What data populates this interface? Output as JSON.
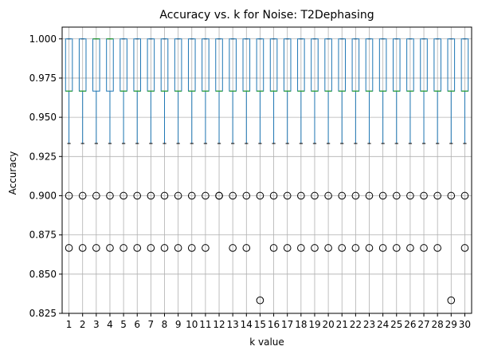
{
  "chart_data": {
    "type": "boxplot",
    "title": "Accuracy vs. k for Noise: T2Dephasing",
    "xlabel": "k value",
    "ylabel": "Accuracy",
    "ylim": [
      0.825,
      1.0075
    ],
    "yticks": [
      0.825,
      0.85,
      0.875,
      0.9,
      0.925,
      0.95,
      0.975,
      1.0
    ],
    "ytick_labels": [
      "0.825",
      "0.850",
      "0.875",
      "0.900",
      "0.925",
      "0.950",
      "0.975",
      "1.000"
    ],
    "grid": true,
    "categories": [
      "1",
      "2",
      "3",
      "4",
      "5",
      "6",
      "7",
      "8",
      "9",
      "10",
      "11",
      "12",
      "13",
      "14",
      "15",
      "16",
      "17",
      "18",
      "19",
      "20",
      "21",
      "22",
      "23",
      "24",
      "25",
      "26",
      "27",
      "28",
      "29",
      "30"
    ],
    "boxes": [
      {
        "k": "1",
        "whislo": 0.9333,
        "q1": 0.9667,
        "med": 0.9667,
        "q3": 1.0,
        "whishi": 1.0,
        "fliers": [
          0.9,
          0.8667
        ]
      },
      {
        "k": "2",
        "whislo": 0.9333,
        "q1": 0.9667,
        "med": 0.9667,
        "q3": 1.0,
        "whishi": 1.0,
        "fliers": [
          0.9,
          0.8667
        ]
      },
      {
        "k": "3",
        "whislo": 0.9333,
        "q1": 0.9667,
        "med": 1.0,
        "q3": 1.0,
        "whishi": 1.0,
        "fliers": [
          0.9,
          0.8667
        ]
      },
      {
        "k": "4",
        "whislo": 0.9333,
        "q1": 0.9667,
        "med": 1.0,
        "q3": 1.0,
        "whishi": 1.0,
        "fliers": [
          0.9,
          0.8667
        ]
      },
      {
        "k": "5",
        "whislo": 0.9333,
        "q1": 0.9667,
        "med": 0.9667,
        "q3": 1.0,
        "whishi": 1.0,
        "fliers": [
          0.9,
          0.8667
        ]
      },
      {
        "k": "6",
        "whislo": 0.9333,
        "q1": 0.9667,
        "med": 0.9667,
        "q3": 1.0,
        "whishi": 1.0,
        "fliers": [
          0.9,
          0.8667
        ]
      },
      {
        "k": "7",
        "whislo": 0.9333,
        "q1": 0.9667,
        "med": 0.9667,
        "q3": 1.0,
        "whishi": 1.0,
        "fliers": [
          0.9,
          0.8667
        ]
      },
      {
        "k": "8",
        "whislo": 0.9333,
        "q1": 0.9667,
        "med": 0.9667,
        "q3": 1.0,
        "whishi": 1.0,
        "fliers": [
          0.9,
          0.8667
        ]
      },
      {
        "k": "9",
        "whislo": 0.9333,
        "q1": 0.9667,
        "med": 0.9667,
        "q3": 1.0,
        "whishi": 1.0,
        "fliers": [
          0.9,
          0.8667
        ]
      },
      {
        "k": "10",
        "whislo": 0.9333,
        "q1": 0.9667,
        "med": 0.9667,
        "q3": 1.0,
        "whishi": 1.0,
        "fliers": [
          0.9,
          0.8667
        ]
      },
      {
        "k": "11",
        "whislo": 0.9333,
        "q1": 0.9667,
        "med": 0.9667,
        "q3": 1.0,
        "whishi": 1.0,
        "fliers": [
          0.9,
          0.8667
        ]
      },
      {
        "k": "12",
        "whislo": 0.9333,
        "q1": 0.9667,
        "med": 0.9667,
        "q3": 1.0,
        "whishi": 1.0,
        "fliers": [
          0.9,
          0.9
        ]
      },
      {
        "k": "13",
        "whislo": 0.9333,
        "q1": 0.9667,
        "med": 0.9667,
        "q3": 1.0,
        "whishi": 1.0,
        "fliers": [
          0.9,
          0.8667
        ]
      },
      {
        "k": "14",
        "whislo": 0.9333,
        "q1": 0.9667,
        "med": 0.9667,
        "q3": 1.0,
        "whishi": 1.0,
        "fliers": [
          0.9,
          0.8667
        ]
      },
      {
        "k": "15",
        "whislo": 0.9333,
        "q1": 0.9667,
        "med": 0.9667,
        "q3": 1.0,
        "whishi": 1.0,
        "fliers": [
          0.9,
          0.8333
        ]
      },
      {
        "k": "16",
        "whislo": 0.9333,
        "q1": 0.9667,
        "med": 0.9667,
        "q3": 1.0,
        "whishi": 1.0,
        "fliers": [
          0.9,
          0.8667
        ]
      },
      {
        "k": "17",
        "whislo": 0.9333,
        "q1": 0.9667,
        "med": 0.9667,
        "q3": 1.0,
        "whishi": 1.0,
        "fliers": [
          0.9,
          0.8667
        ]
      },
      {
        "k": "18",
        "whislo": 0.9333,
        "q1": 0.9667,
        "med": 0.9667,
        "q3": 1.0,
        "whishi": 1.0,
        "fliers": [
          0.9,
          0.8667
        ]
      },
      {
        "k": "19",
        "whislo": 0.9333,
        "q1": 0.9667,
        "med": 0.9667,
        "q3": 1.0,
        "whishi": 1.0,
        "fliers": [
          0.9,
          0.8667
        ]
      },
      {
        "k": "20",
        "whislo": 0.9333,
        "q1": 0.9667,
        "med": 0.9667,
        "q3": 1.0,
        "whishi": 1.0,
        "fliers": [
          0.9,
          0.8667
        ]
      },
      {
        "k": "21",
        "whislo": 0.9333,
        "q1": 0.9667,
        "med": 0.9667,
        "q3": 1.0,
        "whishi": 1.0,
        "fliers": [
          0.9,
          0.8667
        ]
      },
      {
        "k": "22",
        "whislo": 0.9333,
        "q1": 0.9667,
        "med": 0.9667,
        "q3": 1.0,
        "whishi": 1.0,
        "fliers": [
          0.9,
          0.8667
        ]
      },
      {
        "k": "23",
        "whislo": 0.9333,
        "q1": 0.9667,
        "med": 0.9667,
        "q3": 1.0,
        "whishi": 1.0,
        "fliers": [
          0.9,
          0.8667
        ]
      },
      {
        "k": "24",
        "whislo": 0.9333,
        "q1": 0.9667,
        "med": 0.9667,
        "q3": 1.0,
        "whishi": 1.0,
        "fliers": [
          0.9,
          0.8667
        ]
      },
      {
        "k": "25",
        "whislo": 0.9333,
        "q1": 0.9667,
        "med": 0.9667,
        "q3": 1.0,
        "whishi": 1.0,
        "fliers": [
          0.9,
          0.8667
        ]
      },
      {
        "k": "26",
        "whislo": 0.9333,
        "q1": 0.9667,
        "med": 0.9667,
        "q3": 1.0,
        "whishi": 1.0,
        "fliers": [
          0.9,
          0.8667
        ]
      },
      {
        "k": "27",
        "whislo": 0.9333,
        "q1": 0.9667,
        "med": 0.9667,
        "q3": 1.0,
        "whishi": 1.0,
        "fliers": [
          0.9,
          0.8667
        ]
      },
      {
        "k": "28",
        "whislo": 0.9333,
        "q1": 0.9667,
        "med": 0.9667,
        "q3": 1.0,
        "whishi": 1.0,
        "fliers": [
          0.9,
          0.8667
        ]
      },
      {
        "k": "29",
        "whislo": 0.9333,
        "q1": 0.9667,
        "med": 0.9667,
        "q3": 1.0,
        "whishi": 1.0,
        "fliers": [
          0.9,
          0.8333
        ]
      },
      {
        "k": "30",
        "whislo": 0.9333,
        "q1": 0.9667,
        "med": 0.9667,
        "q3": 1.0,
        "whishi": 1.0,
        "fliers": [
          0.9,
          0.8667
        ]
      }
    ],
    "colors": {
      "box": "#1f77b4",
      "median": "#2ca02c",
      "whisker": "#1f77b4",
      "cap": "#000000",
      "flier": "#000000",
      "grid": "#b0b0b0",
      "axes": "#000000"
    }
  }
}
